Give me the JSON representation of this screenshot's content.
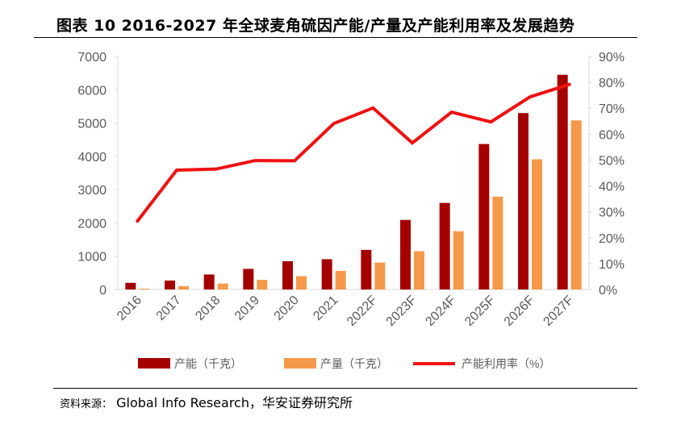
{
  "title": "图表 10 2016-2027 年全球麦角硫因产能/产量及产能利用率及发展趋势",
  "source": {
    "label": "资料来源：",
    "text": "Global Info Research，华安证券研究所"
  },
  "colors": {
    "capacity": "#a50000",
    "production": "#f4994a",
    "utilization": "#ee1111"
  },
  "chart_data": {
    "type": "bar",
    "categories": [
      "2016",
      "2017",
      "2018",
      "2019",
      "2020",
      "2021",
      "2022F",
      "2023F",
      "2024F",
      "2025F",
      "2026F",
      "2027F"
    ],
    "series": [
      {
        "name": "产能（千克）",
        "type": "bar",
        "axis": "left",
        "values": [
          200,
          270,
          450,
          620,
          850,
          910,
          1190,
          2090,
          2600,
          4370,
          5300,
          6450
        ]
      },
      {
        "name": "产量（千克）",
        "type": "bar",
        "axis": "left",
        "values": [
          25,
          100,
          180,
          290,
          400,
          560,
          810,
          1150,
          1750,
          2790,
          3910,
          5080
        ]
      },
      {
        "name": "产能利用率（%）",
        "type": "line",
        "axis": "right",
        "values": [
          26.4,
          46.1,
          46.5,
          49.8,
          49.7,
          64.1,
          70.1,
          56.6,
          68.5,
          64.7,
          74.4,
          79.2
        ]
      }
    ],
    "ylim": [
      0,
      7000
    ],
    "yticks": [
      "0",
      "1000",
      "2000",
      "3000",
      "4000",
      "5000",
      "6000",
      "7000"
    ],
    "y2lim": [
      0,
      90
    ],
    "y2ticks": [
      "0%",
      "10%",
      "20%",
      "30%",
      "40%",
      "50%",
      "60%",
      "70%",
      "80%",
      "90%"
    ],
    "grid": false,
    "legend": "bottom"
  }
}
